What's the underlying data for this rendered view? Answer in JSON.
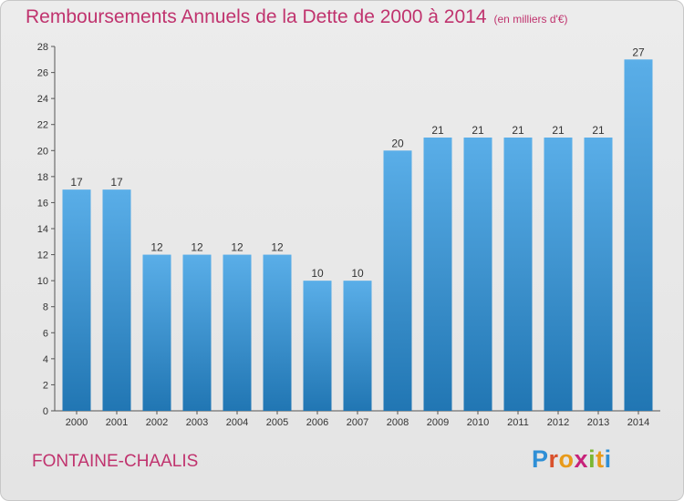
{
  "header": {
    "title": "Remboursements Annuels de la Dette de 2000 à 2014",
    "unit": "(en milliers d'€)"
  },
  "footer": {
    "city": "FONTAINE-CHAALIS",
    "logo_text": "Proxiti"
  },
  "colors": {
    "accent": "#c0336e",
    "bar_top": "#5aaee8",
    "bar_bottom": "#2176b3"
  },
  "chart_data": {
    "type": "bar",
    "title": "Remboursements Annuels de la Dette de 2000 à 2014",
    "categories": [
      "2000",
      "2001",
      "2002",
      "2003",
      "2004",
      "2005",
      "2006",
      "2007",
      "2008",
      "2009",
      "2010",
      "2011",
      "2012",
      "2013",
      "2014"
    ],
    "values": [
      17,
      17,
      12,
      12,
      12,
      12,
      10,
      10,
      20,
      21,
      21,
      21,
      21,
      21,
      27
    ],
    "ylim": [
      0,
      28
    ],
    "yticks": [
      0,
      2,
      4,
      6,
      8,
      10,
      12,
      14,
      16,
      18,
      20,
      22,
      24,
      26,
      28
    ],
    "xlabel": "",
    "ylabel": "",
    "grid": false,
    "legend": "none"
  }
}
